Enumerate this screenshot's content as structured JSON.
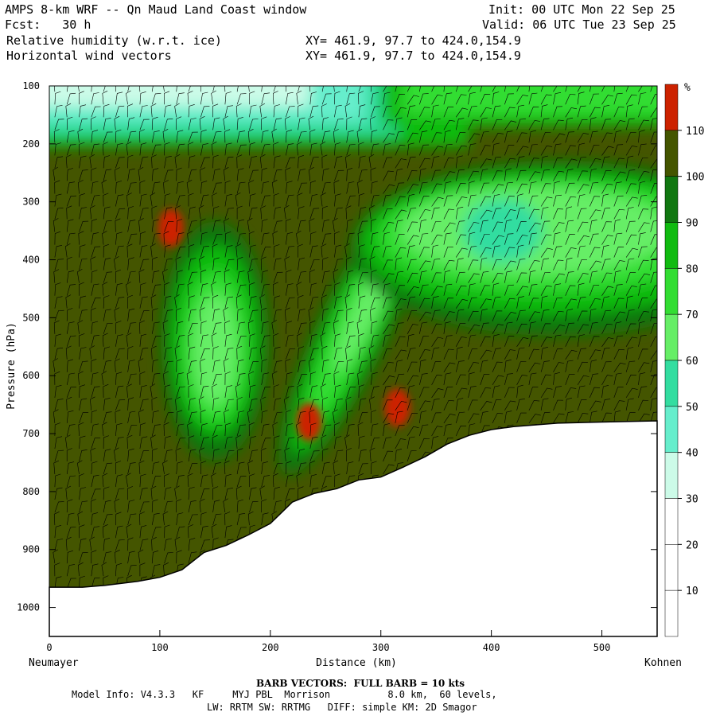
{
  "header": {
    "title": "AMPS 8-km WRF -- Qn Maud Land Coast window",
    "init": "Init: 00 UTC Mon 22 Sep 25",
    "fcst": "Fcst:   30 h",
    "valid": "Valid: 06 UTC Tue 23 Sep 25",
    "field1": "Relative humidity (w.r.t. ice)",
    "xy1": "XY= 461.9, 97.7 to 424.0,154.9",
    "field2": "Horizontal wind vectors",
    "xy2": "XY= 461.9, 97.7 to 424.0,154.9"
  },
  "footer": {
    "barb": "BARB VECTORS:  FULL BARB = 10 kts",
    "model": "Model Info: V4.3.3   KF     MYJ PBL  Morrison          8.0 km,  60 levels,",
    "physics": "LW: RRTM SW: RRTMG   DIFF: simple KM: 2D Smagor"
  },
  "chart_data": {
    "type": "heatmap",
    "title": "Relative humidity (w.r.t. ice) with horizontal wind vectors — vertical cross-section",
    "xlabel": "Distance (km)",
    "ylabel": "Pressure (hPa)",
    "xlim": [
      0,
      550
    ],
    "ylim": [
      1050,
      100
    ],
    "x_ticks": [
      0,
      100,
      200,
      300,
      400,
      500
    ],
    "y_ticks": [
      100,
      200,
      300,
      400,
      500,
      600,
      700,
      800,
      900,
      1000
    ],
    "left_endpoint": "Neumayer",
    "right_endpoint": "Kohnen",
    "colorbar": {
      "unit": "%",
      "levels": [
        10,
        20,
        30,
        40,
        50,
        60,
        70,
        80,
        90,
        100,
        110
      ],
      "colors": [
        "#ffffff",
        "#ffffff",
        "#ffffff",
        "#ccfbe8",
        "#66eecc",
        "#33dda0",
        "#66ee66",
        "#33dd33",
        "#11bb11",
        "#117711",
        "#445500",
        "#cc2200"
      ]
    },
    "terrain_pressure_hPa": [
      [
        0,
        965
      ],
      [
        30,
        965
      ],
      [
        50,
        962
      ],
      [
        80,
        955
      ],
      [
        100,
        948
      ],
      [
        120,
        935
      ],
      [
        140,
        905
      ],
      [
        160,
        893
      ],
      [
        180,
        875
      ],
      [
        200,
        855
      ],
      [
        220,
        818
      ],
      [
        240,
        803
      ],
      [
        260,
        795
      ],
      [
        280,
        780
      ],
      [
        300,
        775
      ],
      [
        320,
        758
      ],
      [
        340,
        740
      ],
      [
        360,
        718
      ],
      [
        380,
        703
      ],
      [
        400,
        693
      ],
      [
        420,
        688
      ],
      [
        460,
        682
      ],
      [
        500,
        680
      ],
      [
        550,
        678
      ]
    ],
    "features": [
      {
        "name": "upper dry layer",
        "range_km": [
          0,
          290
        ],
        "pressure_hPa": [
          100,
          200
        ],
        "rh_min": 30
      },
      {
        "name": "mid-level dry band 1",
        "center_km": [
          145,
          560
        ],
        "rh": 60
      },
      {
        "name": "mid-level dry band 2",
        "center_km": [
          280,
          460
        ],
        "rh": 60
      },
      {
        "name": "upper-right dry region",
        "center_km": [
          400,
          350
        ],
        "rh": 50
      },
      {
        "name": "supersaturation patch",
        "center_km": [
          110,
          345
        ],
        "rh": 110
      },
      {
        "name": "supersaturation patch",
        "center_km": [
          235,
          680
        ],
        "rh": 110
      },
      {
        "name": "supersaturation patch",
        "center_km": [
          315,
          655
        ],
        "rh": 110
      }
    ]
  }
}
